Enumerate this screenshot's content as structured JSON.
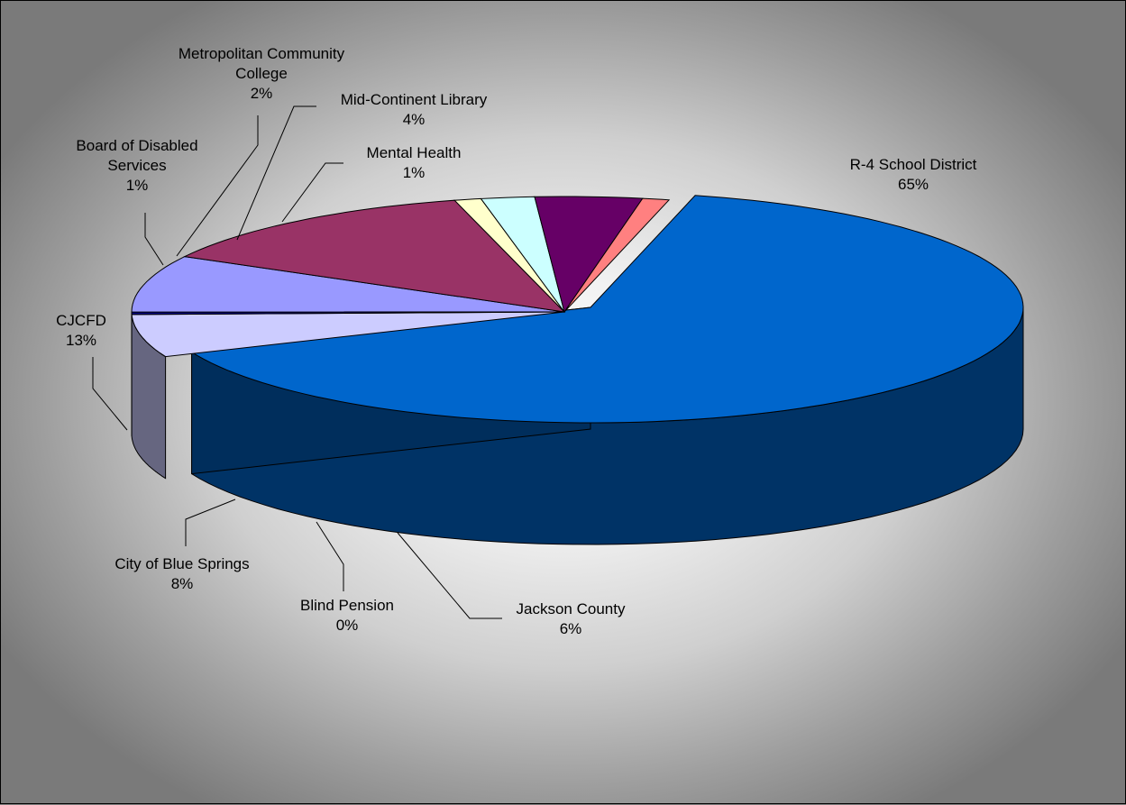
{
  "chart_data": {
    "type": "pie",
    "title": "",
    "style": "3d-exploded",
    "slices": [
      {
        "name": "R-4 School District",
        "label": "65%",
        "value": 65,
        "color": "#0066CC"
      },
      {
        "name": "Jackson County",
        "label": "6%",
        "value": 6,
        "color": "#CCCCFF"
      },
      {
        "name": "Blind Pension",
        "label": "0%",
        "value": 0,
        "color": "#000080"
      },
      {
        "name": "City of Blue Springs",
        "label": "8%",
        "value": 8,
        "color": "#9999FF"
      },
      {
        "name": "CJCFD",
        "label": "13%",
        "value": 13,
        "color": "#993366"
      },
      {
        "name": "Board of Disabled Services",
        "label": "1%",
        "value": 1,
        "color": "#FFFFCC"
      },
      {
        "name": "Metropolitan Community College",
        "label": "2%",
        "value": 2,
        "color": "#CCFFFF"
      },
      {
        "name": "Mid-Continent Library",
        "label": "4%",
        "value": 4,
        "color": "#660066"
      },
      {
        "name": "Mental Health",
        "label": "1%",
        "value": 1,
        "color": "#FF8080"
      }
    ]
  }
}
